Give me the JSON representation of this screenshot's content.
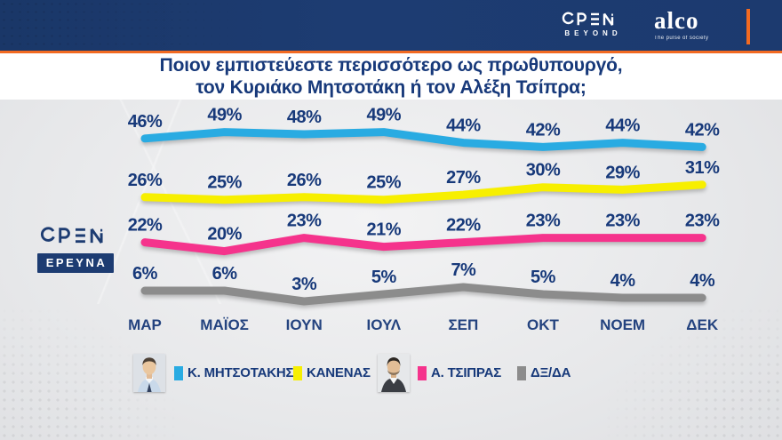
{
  "header": {
    "open_brand": "OPEN",
    "open_sub": "BEYOND",
    "alco_name": "alco",
    "alco_tagline": "The pulse of society"
  },
  "title": {
    "line1": "Ποιον εμπιστεύεστε περισσότερο ως πρωθυπουργό,",
    "line2": "τον Κυριάκο Μητσοτάκη ή τον Αλέξη Τσίπρα;"
  },
  "side_logo": {
    "brand": "OPEN",
    "label": "ΕΡΕΥΝΑ"
  },
  "chart_data": {
    "type": "line",
    "title": "Ποιον εμπιστεύεστε περισσότερο ως πρωθυπουργό, τον Κυριάκο Μητσοτάκη ή τον Αλέξη Τσίπρα;",
    "categories": [
      "ΜΑΡ",
      "ΜΑΪΟΣ",
      "ΙΟΥΝ",
      "ΙΟΥΛ",
      "ΣΕΠ",
      "ΟΚΤ",
      "ΝΟΕΜ",
      "ΔΕΚ"
    ],
    "unit": "%",
    "value_labels": true,
    "grid": false,
    "legend_position": "bottom",
    "series": [
      {
        "name": "Κ. ΜΗΤΣΟΤΑΚΗΣ",
        "color": "#29abe2",
        "values": [
          46,
          49,
          48,
          49,
          44,
          42,
          44,
          42
        ]
      },
      {
        "name": "ΚΑΝΕΝΑΣ",
        "color": "#f7ef00",
        "values": [
          26,
          25,
          26,
          25,
          27,
          30,
          29,
          31
        ]
      },
      {
        "name": "Α. ΤΣΙΠΡΑΣ",
        "color": "#f5338c",
        "values": [
          22,
          20,
          23,
          21,
          22,
          23,
          23,
          23
        ]
      },
      {
        "name": "ΔΞ/ΔΑ",
        "color": "#8c8c8c",
        "values": [
          6,
          6,
          3,
          5,
          7,
          5,
          4,
          4
        ]
      }
    ]
  },
  "colors": {
    "navy_bar": "#1d3c72",
    "orange_accent": "#f26a21",
    "label_navy": "#17397a",
    "chart_bg": "#e7e8ea"
  }
}
